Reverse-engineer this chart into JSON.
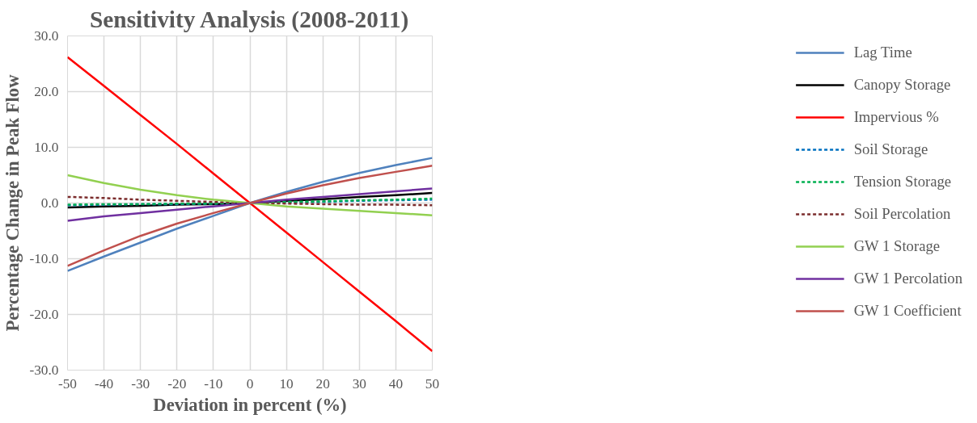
{
  "chart_data": {
    "type": "line",
    "title": "Sensitivity Analysis (2008-2011)",
    "xlabel": "Deviation in percent (%)",
    "ylabel": "Percentage Change in Peak Flow",
    "x": [
      -50,
      -40,
      -30,
      -20,
      -10,
      0,
      10,
      20,
      30,
      40,
      50
    ],
    "xlim": [
      -50,
      50
    ],
    "xticks": [
      -50,
      -40,
      -30,
      -20,
      -10,
      0,
      10,
      20,
      30,
      40,
      50
    ],
    "ylim": [
      -30,
      30
    ],
    "yticks": [
      {
        "value": -30,
        "label": "-30.0"
      },
      {
        "value": -20,
        "label": "-20.0"
      },
      {
        "value": -10,
        "label": "-10.0"
      },
      {
        "value": 0,
        "label": "0.0"
      },
      {
        "value": 10,
        "label": "10.0"
      },
      {
        "value": 20,
        "label": "20.0"
      },
      {
        "value": 30,
        "label": "30.0"
      }
    ],
    "grid": true,
    "legend": "right",
    "marker": "none",
    "series": [
      {
        "name": "Lag Time",
        "color": "#4f81bd",
        "line_style": "solid",
        "values": [
          -12.2,
          -9.6,
          -7.1,
          -4.6,
          -2.3,
          0,
          2.0,
          3.8,
          5.4,
          6.8,
          8.1
        ]
      },
      {
        "name": "Canopy Storage",
        "color": "#000000",
        "line_style": "solid",
        "values": [
          -0.8,
          -0.6,
          -0.5,
          -0.3,
          -0.2,
          0,
          0.4,
          0.7,
          1.1,
          1.4,
          1.8
        ]
      },
      {
        "name": "Impervious %",
        "color": "#ff0000",
        "line_style": "solid",
        "values": [
          26.2,
          21.0,
          15.8,
          10.6,
          5.3,
          0,
          -5.3,
          -10.6,
          -15.9,
          -21.2,
          -26.6
        ]
      },
      {
        "name": "Soil Storage",
        "color": "#0070c0",
        "line_style": "dashed",
        "values": [
          -0.4,
          -0.3,
          -0.2,
          -0.2,
          -0.1,
          0,
          0.1,
          0.2,
          0.4,
          0.5,
          0.6
        ]
      },
      {
        "name": "Tension Storage",
        "color": "#00b050",
        "line_style": "dashed",
        "values": [
          -0.3,
          -0.2,
          -0.2,
          -0.1,
          -0.1,
          0,
          0.2,
          0.3,
          0.5,
          0.6,
          0.8
        ]
      },
      {
        "name": "Soil Percolation",
        "color": "#7b2c2c",
        "line_style": "dashed",
        "values": [
          1.1,
          0.9,
          0.6,
          0.4,
          0.2,
          0,
          -0.1,
          -0.2,
          -0.3,
          -0.3,
          -0.4
        ]
      },
      {
        "name": "GW 1 Storage",
        "color": "#92d050",
        "line_style": "solid",
        "values": [
          5.0,
          3.6,
          2.4,
          1.4,
          0.6,
          0,
          -0.6,
          -1.0,
          -1.4,
          -1.8,
          -2.2
        ]
      },
      {
        "name": "GW 1 Percolation",
        "color": "#7030a0",
        "line_style": "solid",
        "values": [
          -3.2,
          -2.4,
          -1.8,
          -1.2,
          -0.6,
          0,
          0.6,
          1.1,
          1.6,
          2.1,
          2.6
        ]
      },
      {
        "name": "GW 1 Coefficient",
        "color": "#c0504d",
        "line_style": "solid",
        "values": [
          -11.3,
          -8.5,
          -5.9,
          -3.7,
          -1.8,
          0,
          1.7,
          3.2,
          4.5,
          5.6,
          6.7
        ]
      }
    ]
  }
}
